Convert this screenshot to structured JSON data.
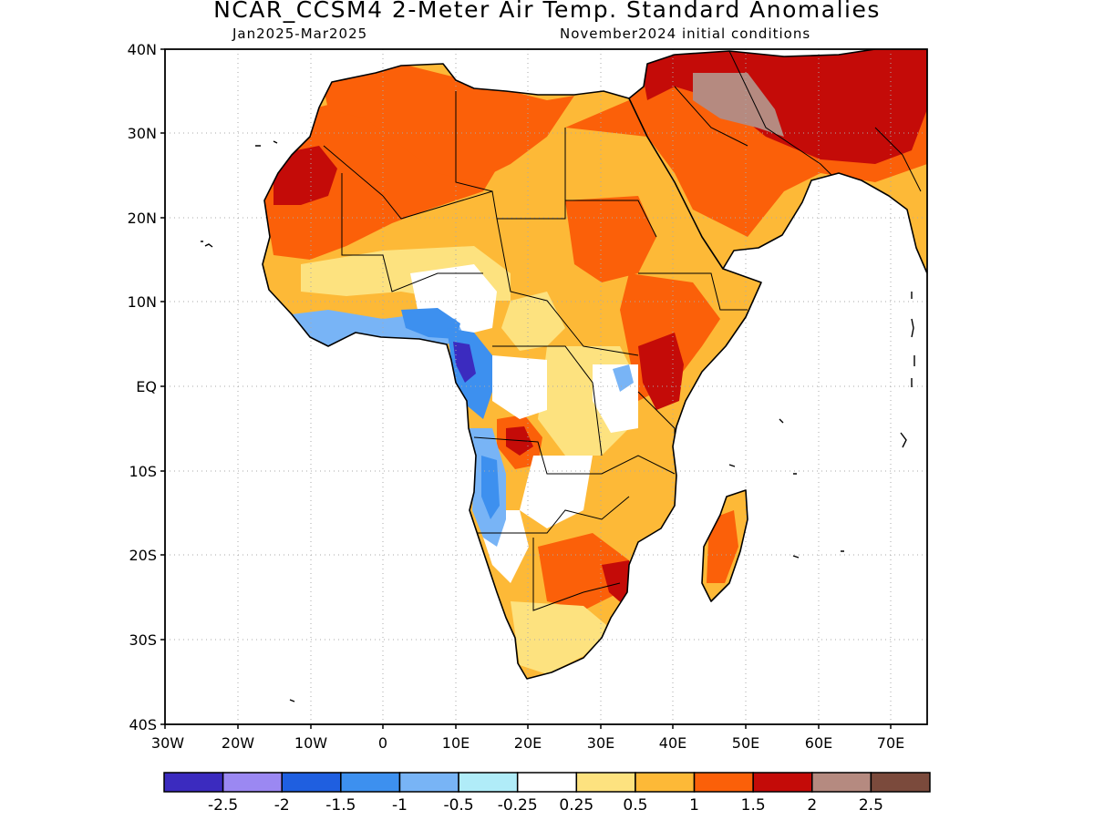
{
  "header": {
    "title": "NCAR_CCSM4 2-Meter Air Temp. Standard Anomalies",
    "period": "Jan2025-Mar2025",
    "init": "November2024 initial conditions"
  },
  "map": {
    "lon_range": [
      -30,
      75
    ],
    "lat_range": [
      -40,
      40
    ],
    "y_tick_labels": [
      "40N",
      "30N",
      "20N",
      "10N",
      "EQ",
      "10S",
      "20S",
      "30S",
      "40S"
    ],
    "x_tick_labels": [
      "30W",
      "20W",
      "10W",
      "0",
      "10E",
      "20E",
      "30E",
      "40E",
      "50E",
      "60E",
      "70E"
    ]
  },
  "legend": {
    "colors": [
      "#3b2bbf",
      "#9b88f2",
      "#1f5fe0",
      "#3d90ef",
      "#78b4f6",
      "#b0ecf8",
      "#ffffff",
      "#fde27f",
      "#fdb937",
      "#fb6009",
      "#c40b08",
      "#b58a80",
      "#7b4a3c"
    ],
    "labels": [
      "-2.5",
      "-2",
      "-1.5",
      "-1",
      "-0.5",
      "-0.25",
      "0.25",
      "0.5",
      "1",
      "1.5",
      "2",
      "2.5"
    ]
  }
}
